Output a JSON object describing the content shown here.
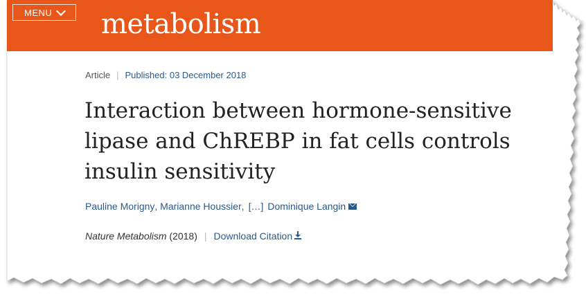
{
  "header": {
    "menu_label": "MENU",
    "journal_logo": "metabolism",
    "brand_color": "#e8561a"
  },
  "meta": {
    "article_type": "Article",
    "separator": "|",
    "published": "Published: 03 December 2018"
  },
  "article": {
    "title_line1": "Interaction between hormone-sensitive",
    "title_line2": "lipase and ChREBP in fat cells controls",
    "title_line3": "insulin sensitivity"
  },
  "authors": {
    "first": "Pauline Morigny",
    "comma1": ",",
    "second": "Marianne Houssier",
    "comma2": ",",
    "ellipsis": "[…]",
    "last": "Dominique Langin",
    "mail_icon": "mail-icon"
  },
  "citation": {
    "journal": "Nature Metabolism",
    "year": "(2018)",
    "separator": "|",
    "download_label": "Download Citation",
    "download_icon": "download-icon",
    "link_color": "#2a5a8a"
  }
}
